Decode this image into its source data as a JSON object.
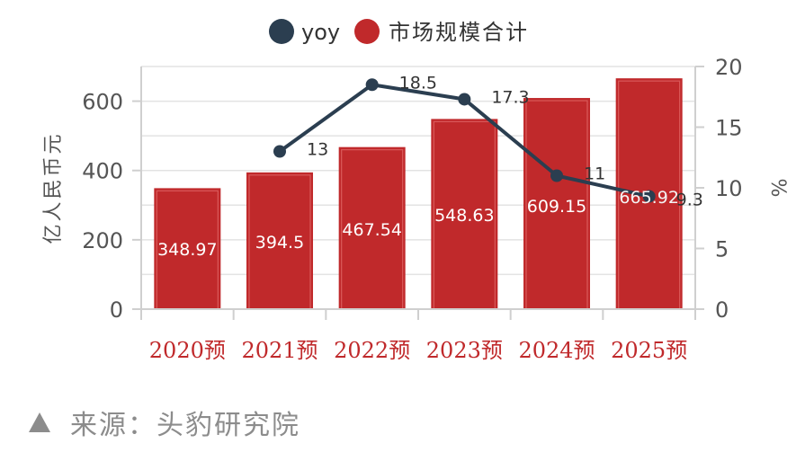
{
  "chart_data": {
    "type": "bar",
    "categories": [
      "2020预",
      "2021预",
      "2022预",
      "2023预",
      "2024预",
      "2025预"
    ],
    "series": [
      {
        "name": "市场规模合计",
        "type": "bar",
        "axis": "left",
        "values": [
          348.97,
          394.5,
          467.54,
          548.63,
          609.15,
          665.92
        ],
        "labels": [
          "348.97",
          "394.5",
          "467.54",
          "548.63",
          "609.15",
          "665.92"
        ]
      },
      {
        "name": "yoy",
        "type": "line",
        "axis": "right",
        "values": [
          null,
          13,
          18.5,
          17.3,
          11,
          9.3
        ],
        "labels": [
          "",
          "13",
          "18.5",
          "17.3",
          "11",
          "9.3"
        ]
      }
    ],
    "ylabel": "亿人民币元",
    "y2label": "%",
    "ylim": [
      0,
      700
    ],
    "y2lim": [
      0,
      20
    ],
    "yticks": [
      "0",
      "200",
      "400",
      "600"
    ],
    "y2ticks": [
      "0",
      "5",
      "10",
      "15",
      "20"
    ],
    "grid": true,
    "legend": "top-center",
    "colors": {
      "bar": "#c0292b",
      "line": "#2b3e50",
      "category_text": "#c0292b",
      "axis_text": "#555555"
    }
  },
  "source": {
    "label": "来源：头豹研究院"
  }
}
